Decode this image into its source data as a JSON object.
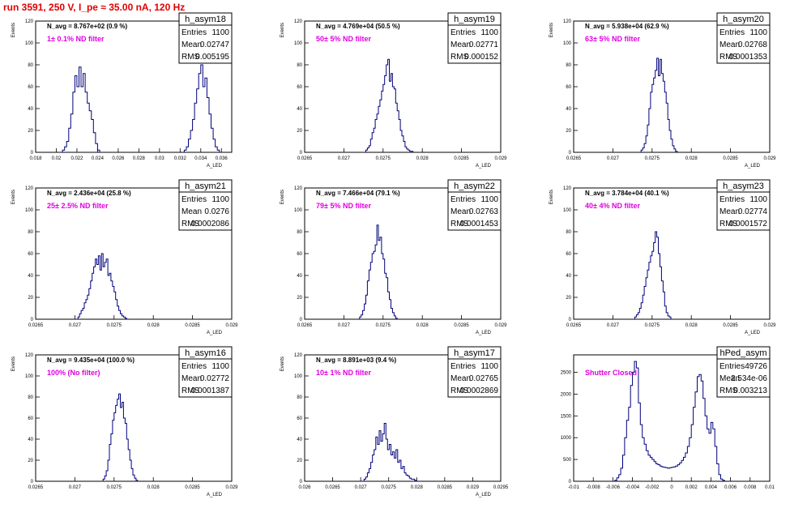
{
  "title": "run 3591,   250 V, I_pe ≈ 35.00 nA, 120 Hz",
  "colors": {
    "title": "#e00000",
    "histogram": "#00007a",
    "filter_label": "#e000e0"
  },
  "chart_data": [
    {
      "type": "bar",
      "name": "h_asym18",
      "n_avg_label": "N_avg = 8.767e+02  (0.9 %)",
      "filter_label": "1± 0.1% ND filter",
      "stats": {
        "entries_label": "Entries",
        "entries": "1100",
        "mean_label": "Mean",
        "mean": "0.02747",
        "rms_label": "RMS",
        "rms": "0.005195"
      },
      "xlabel": "A_LED",
      "ylabel": "Events",
      "xlim": [
        0.018,
        0.037
      ],
      "ylim": [
        0,
        120
      ],
      "xticks": [
        0.018,
        0.02,
        0.022,
        0.024,
        0.026,
        0.028,
        0.03,
        0.032,
        0.034,
        0.036
      ],
      "xticklabels": [
        "0.018",
        "0.02",
        "0.022",
        "0.024",
        "0.026",
        "0.028",
        "0.03",
        "0.032",
        "0.034",
        "0.036"
      ],
      "yticks": [
        0,
        20,
        40,
        60,
        80,
        100,
        120
      ],
      "bin_width": 0.0002,
      "bin_starts": [
        0.0206,
        0.0324
      ],
      "counts": [
        [
          2,
          5,
          10,
          22,
          35,
          55,
          70,
          60,
          78,
          60,
          72,
          55,
          45,
          38,
          30,
          18,
          8,
          2
        ],
        [
          2,
          5,
          12,
          20,
          30,
          45,
          58,
          72,
          80,
          60,
          68,
          50,
          35,
          22,
          12,
          5,
          2
        ]
      ]
    },
    {
      "type": "bar",
      "name": "h_asym19",
      "n_avg_label": "N_avg = 4.769e+04  (50.5 %)",
      "filter_label": "50± 5% ND filter",
      "stats": {
        "entries_label": "Entries",
        "entries": "1100",
        "mean_label": "Mean",
        "mean": "0.02771",
        "rms_label": "RMS",
        "rms": "0.000152"
      },
      "xlabel": "A_LED",
      "ylabel": "Events",
      "xlim": [
        0.0265,
        0.029
      ],
      "ylim": [
        0,
        120
      ],
      "xticks": [
        0.0265,
        0.027,
        0.0275,
        0.028,
        0.0285,
        0.029
      ],
      "xticklabels": [
        "0.0265",
        "0.027",
        "0.0275",
        "0.028",
        "0.0285",
        "0.029"
      ],
      "yticks": [
        0,
        20,
        40,
        60,
        80,
        100,
        120
      ],
      "bin_width": 2e-05,
      "bin_starts": [
        0.02728
      ],
      "counts": [
        [
          2,
          4,
          6,
          12,
          18,
          22,
          30,
          35,
          42,
          48,
          56,
          62,
          70,
          80,
          85,
          65,
          72,
          60,
          58,
          45,
          38,
          30,
          20,
          15,
          10,
          5,
          3,
          2,
          1,
          1
        ]
      ]
    },
    {
      "type": "bar",
      "name": "h_asym20",
      "n_avg_label": "N_avg = 5.938e+04  (62.9 %)",
      "filter_label": "63± 5% ND filter",
      "stats": {
        "entries_label": "Entries",
        "entries": "1100",
        "mean_label": "Mean",
        "mean": "0.02768",
        "rms_label": "RMS",
        "rms": "0.0001353"
      },
      "xlabel": "A_LED",
      "ylabel": "Events",
      "xlim": [
        0.0265,
        0.029
      ],
      "ylim": [
        0,
        120
      ],
      "xticks": [
        0.0265,
        0.027,
        0.0275,
        0.028,
        0.0285,
        0.029
      ],
      "xticklabels": [
        "0.0265",
        "0.027",
        "0.0275",
        "0.028",
        "0.0285",
        "0.029"
      ],
      "yticks": [
        0,
        20,
        40,
        60,
        80,
        100,
        120
      ],
      "bin_width": 2e-05,
      "bin_starts": [
        0.02736
      ],
      "counts": [
        [
          2,
          4,
          8,
          15,
          25,
          40,
          55,
          62,
          68,
          75,
          86,
          70,
          85,
          72,
          65,
          55,
          45,
          30,
          20,
          12,
          6,
          3,
          1
        ]
      ]
    },
    {
      "type": "bar",
      "name": "h_asym21",
      "n_avg_label": "N_avg = 2.436e+04  (25.8 %)",
      "filter_label": "25± 2.5% ND filter",
      "stats": {
        "entries_label": "Entries",
        "entries": "1100",
        "mean_label": "Mean",
        "mean": "0.0276",
        "rms_label": "RMS",
        "rms": "0.0002086"
      },
      "xlabel": "A_LED",
      "ylabel": "Events",
      "xlim": [
        0.0265,
        0.029
      ],
      "ylim": [
        0,
        120
      ],
      "xticks": [
        0.0265,
        0.027,
        0.0275,
        0.028,
        0.0285,
        0.029
      ],
      "xticklabels": [
        "0.0265",
        "0.027",
        "0.0275",
        "0.028",
        "0.0285",
        "0.029"
      ],
      "yticks": [
        0,
        20,
        40,
        60,
        80,
        100,
        120
      ],
      "bin_width": 2e-05,
      "bin_starts": [
        0.02704
      ],
      "counts": [
        [
          2,
          5,
          8,
          10,
          15,
          18,
          22,
          28,
          35,
          42,
          48,
          55,
          50,
          58,
          45,
          60,
          48,
          52,
          55,
          40,
          42,
          35,
          30,
          25,
          18,
          12,
          8,
          5,
          3,
          2,
          1
        ]
      ]
    },
    {
      "type": "bar",
      "name": "h_asym22",
      "n_avg_label": "N_avg = 7.466e+04  (79.1 %)",
      "filter_label": "79± 5% ND filter",
      "stats": {
        "entries_label": "Entries",
        "entries": "1100",
        "mean_label": "Mean",
        "mean": "0.02763",
        "rms_label": "RMS",
        "rms": "0.0001453"
      },
      "xlabel": "A_LED",
      "ylabel": "Events",
      "xlim": [
        0.0265,
        0.029
      ],
      "ylim": [
        0,
        120
      ],
      "xticks": [
        0.0265,
        0.027,
        0.0275,
        0.028,
        0.0285,
        0.029
      ],
      "xticklabels": [
        "0.0265",
        "0.027",
        "0.0275",
        "0.028",
        "0.0285",
        "0.029"
      ],
      "yticks": [
        0,
        20,
        40,
        60,
        80,
        100,
        120
      ],
      "bin_width": 2e-05,
      "bin_starts": [
        0.0272
      ],
      "counts": [
        [
          2,
          4,
          8,
          14,
          22,
          35,
          45,
          52,
          60,
          62,
          68,
          86,
          72,
          75,
          60,
          55,
          42,
          38,
          25,
          18,
          10,
          6,
          3,
          1
        ]
      ]
    },
    {
      "type": "bar",
      "name": "h_asym23",
      "n_avg_label": "N_avg = 3.784e+04  (40.1 %)",
      "filter_label": "40± 4% ND filter",
      "stats": {
        "entries_label": "Entries",
        "entries": "1100",
        "mean_label": "Mean",
        "mean": "0.02774",
        "rms_label": "RMS",
        "rms": "0.0001572"
      },
      "xlabel": "A_LED",
      "ylabel": "Events",
      "xlim": [
        0.0265,
        0.029
      ],
      "ylim": [
        0,
        120
      ],
      "xticks": [
        0.0265,
        0.027,
        0.0275,
        0.028,
        0.0285,
        0.029
      ],
      "xticklabels": [
        "0.0265",
        "0.027",
        "0.0275",
        "0.028",
        "0.0285",
        "0.029"
      ],
      "yticks": [
        0,
        20,
        40,
        60,
        80,
        100,
        120
      ],
      "bin_width": 2e-05,
      "bin_starts": [
        0.02728
      ],
      "counts": [
        [
          2,
          4,
          6,
          10,
          15,
          22,
          30,
          38,
          45,
          52,
          58,
          62,
          70,
          80,
          75,
          60,
          48,
          35,
          25,
          12,
          6,
          3,
          2
        ]
      ]
    },
    {
      "type": "bar",
      "name": "h_asym16",
      "n_avg_label": "N_avg = 9.435e+04  (100.0 %)",
      "filter_label": "100% (No filter)",
      "stats": {
        "entries_label": "Entries",
        "entries": "1100",
        "mean_label": "Mean",
        "mean": "0.02772",
        "rms_label": "RMS",
        "rms": "0.0001387"
      },
      "xlabel": "A_LED",
      "ylabel": "Events",
      "xlim": [
        0.0265,
        0.029
      ],
      "ylim": [
        0,
        120
      ],
      "xticks": [
        0.0265,
        0.027,
        0.0275,
        0.028,
        0.0285,
        0.029
      ],
      "xticklabels": [
        "0.0265",
        "0.027",
        "0.0275",
        "0.028",
        "0.0285",
        "0.029"
      ],
      "yticks": [
        0,
        20,
        40,
        60,
        80,
        100,
        120
      ],
      "bin_width": 2e-05,
      "bin_starts": [
        0.02736
      ],
      "counts": [
        [
          2,
          5,
          10,
          20,
          35,
          45,
          58,
          65,
          72,
          78,
          83,
          70,
          75,
          60,
          55,
          40,
          30,
          20,
          12,
          6,
          3,
          1
        ]
      ]
    },
    {
      "type": "bar",
      "name": "h_asym17",
      "n_avg_label": "N_avg = 8.891e+03  (9.4 %)",
      "filter_label": "10± 1% ND filter",
      "stats": {
        "entries_label": "Entries",
        "entries": "1100",
        "mean_label": "Mean",
        "mean": "0.02765",
        "rms_label": "RMS",
        "rms": "0.0002869"
      },
      "xlabel": "A_LED",
      "ylabel": "Events",
      "xlim": [
        0.026,
        0.0295
      ],
      "ylim": [
        0,
        120
      ],
      "xticks": [
        0.026,
        0.0265,
        0.027,
        0.0275,
        0.028,
        0.0285,
        0.029,
        0.0295
      ],
      "xticklabels": [
        "0.026",
        "0.0265",
        "0.027",
        "0.0275",
        "0.028",
        "0.0285",
        "0.029",
        "0.0295"
      ],
      "yticks": [
        0,
        20,
        40,
        60,
        80,
        100,
        120
      ],
      "bin_width": 3e-05,
      "bin_starts": [
        0.02706
      ],
      "counts": [
        [
          2,
          4,
          8,
          12,
          18,
          25,
          30,
          42,
          35,
          48,
          38,
          45,
          55,
          40,
          30,
          35,
          25,
          28,
          22,
          30,
          18,
          20,
          12,
          14,
          8,
          6,
          5,
          3,
          2,
          2,
          1
        ]
      ]
    },
    {
      "type": "bar",
      "name": "hPed_asym",
      "n_avg_label": "",
      "filter_label": "Shutter Closed",
      "stats": {
        "entries_label": "Entries",
        "entries": "49726",
        "mean_label": "Mean",
        "mean": "2.534e-06",
        "rms_label": "RMS",
        "rms": "0.003213"
      },
      "xlabel": "",
      "ylabel": "",
      "xlim": [
        -0.01,
        0.01
      ],
      "ylim": [
        0,
        2900
      ],
      "xticks": [
        -0.01,
        -0.008,
        -0.006,
        -0.004,
        -0.002,
        0,
        0.002,
        0.004,
        0.006,
        0.008,
        0.01
      ],
      "xticklabels": [
        "-0.01",
        "-0.008",
        "-0.006",
        "-0.004",
        "-0.002",
        "0",
        "0.002",
        "0.004",
        "0.006",
        "0.008",
        "0.01"
      ],
      "yticks": [
        0,
        500,
        1000,
        1500,
        2000,
        2500
      ],
      "bin_width": 0.0002,
      "bin_starts": [
        -0.0058
      ],
      "counts": [
        [
          20,
          80,
          150,
          300,
          600,
          1000,
          1400,
          1700,
          2200,
          2500,
          2750,
          2600,
          1800,
          1300,
          1000,
          850,
          700,
          600,
          550,
          500,
          450,
          400,
          380,
          350,
          330,
          320,
          310,
          300,
          310,
          320,
          330,
          350,
          380,
          420,
          480,
          550,
          650,
          800,
          1000,
          1300,
          1700,
          2050,
          2400,
          2450,
          2300,
          1900,
          1500,
          1200,
          1100,
          1350,
          1200,
          800,
          400,
          150,
          50,
          20
        ]
      ]
    }
  ]
}
